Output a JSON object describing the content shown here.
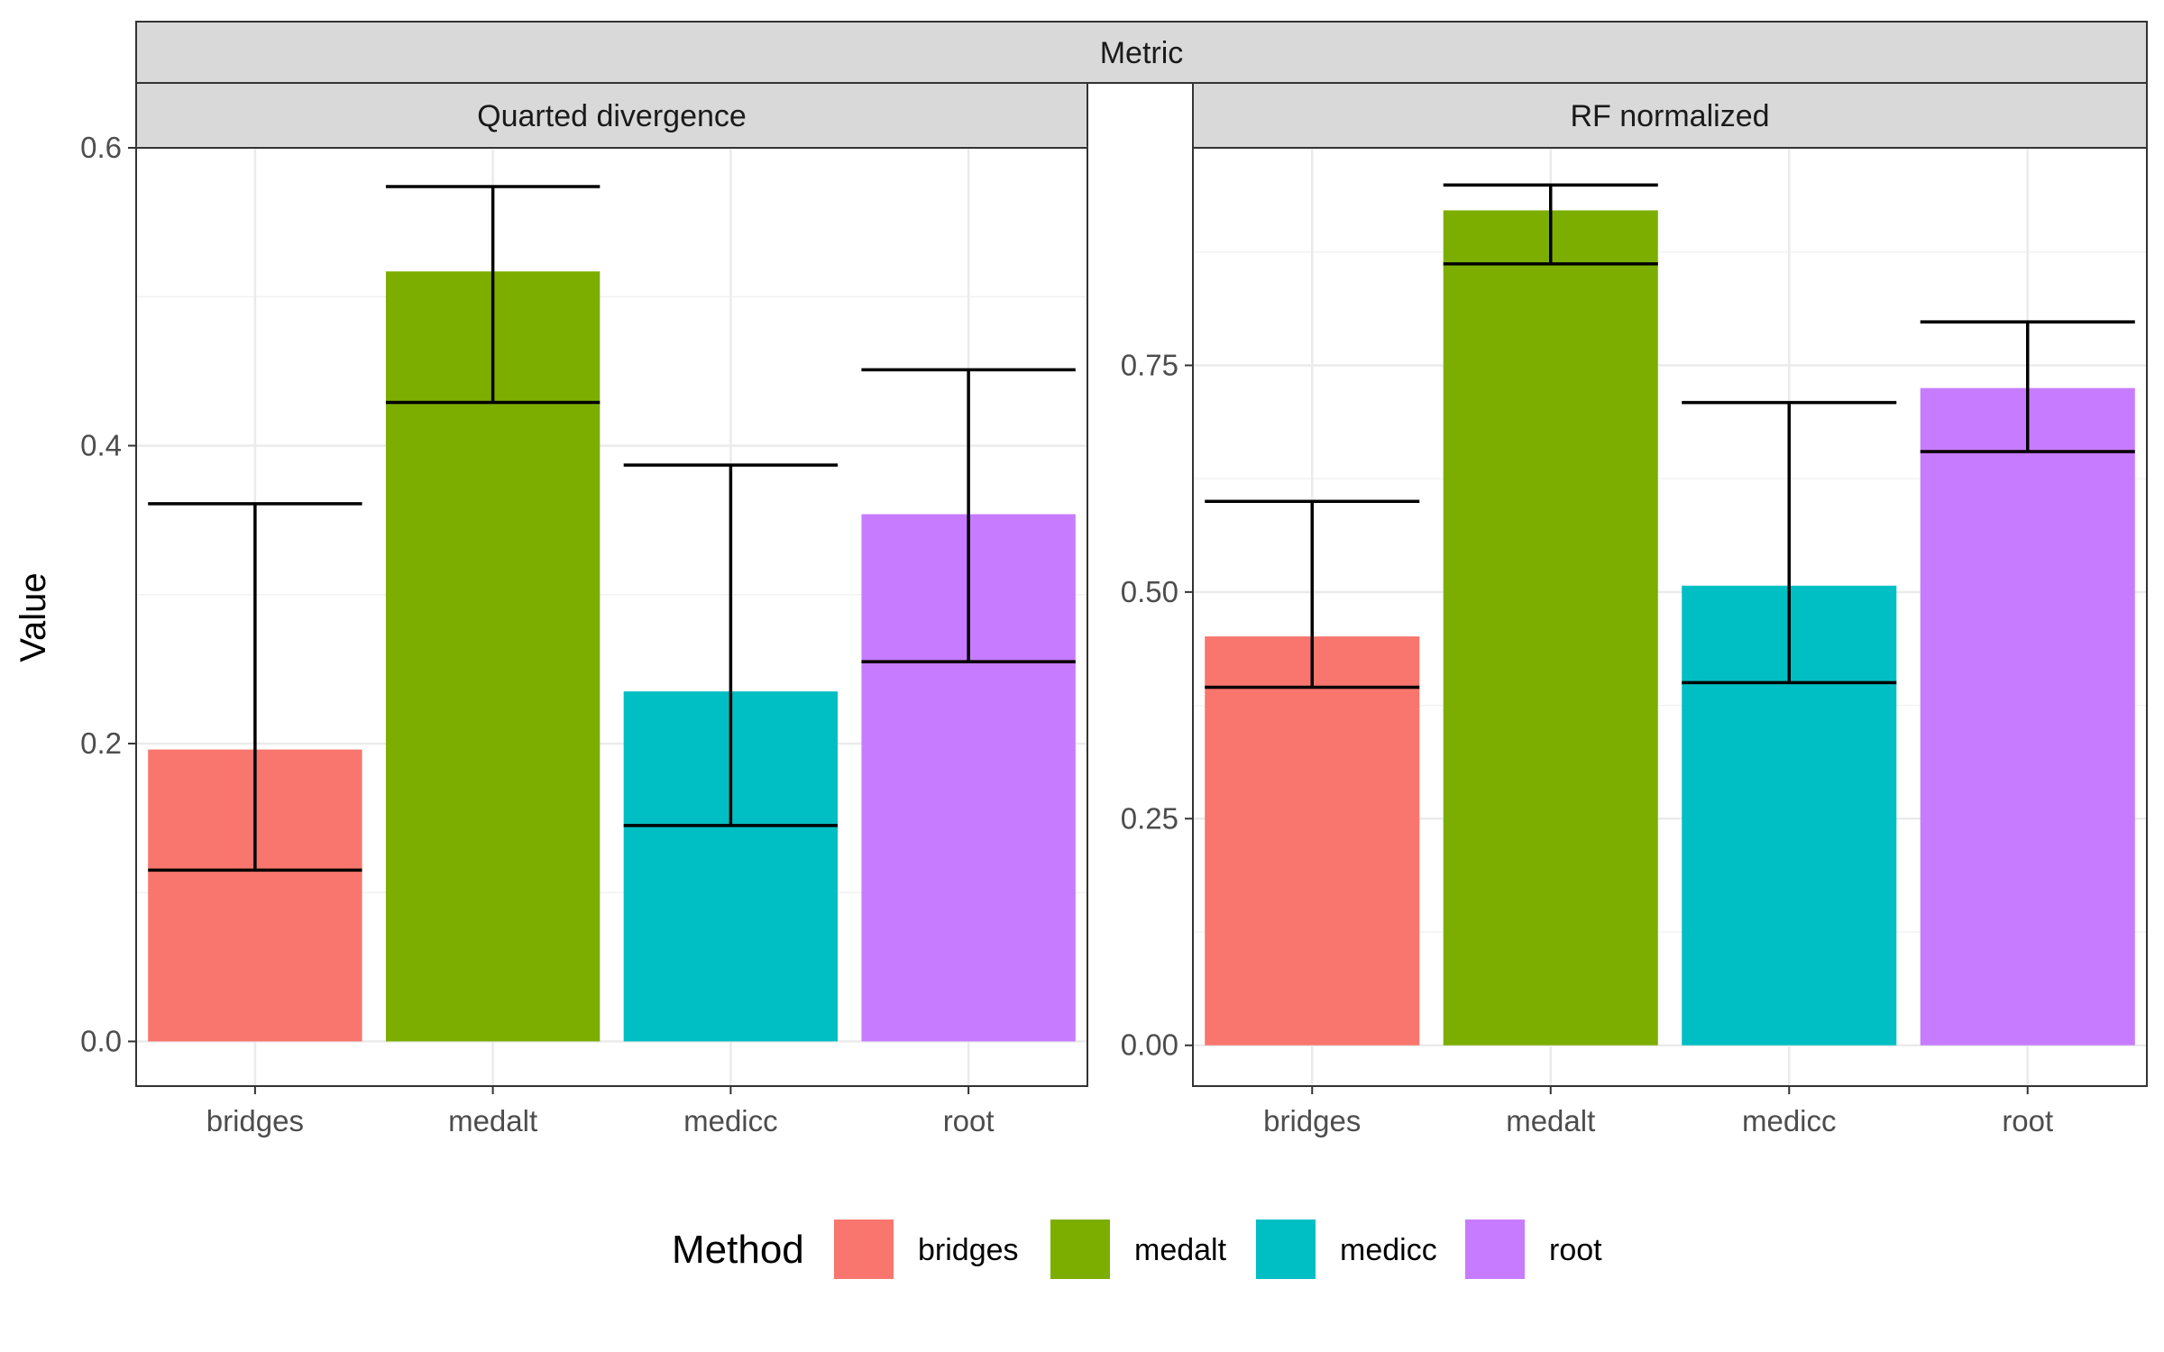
{
  "chart_data": {
    "type": "bar",
    "outer_strip": "Metric",
    "ylabel": "Value",
    "categories": [
      "bridges",
      "medalt",
      "medicc",
      "root"
    ],
    "colors": {
      "bridges": "#F8766D",
      "medalt": "#7CAE00",
      "medicc": "#00BFC4",
      "root": "#C77CFF"
    },
    "legend": {
      "title": "Method",
      "position": "bottom",
      "items": [
        "bridges",
        "medalt",
        "medicc",
        "root"
      ]
    },
    "facets": [
      {
        "title": "Quarted divergence",
        "ylim": [
          -0.03,
          0.6
        ],
        "yticks": [
          0.0,
          0.2,
          0.4,
          0.6
        ],
        "ytick_labels": [
          "0.0",
          "0.2",
          "0.4",
          "0.6"
        ],
        "values": [
          0.196,
          0.517,
          0.235,
          0.354
        ],
        "err_low": [
          0.115,
          0.429,
          0.145,
          0.255
        ],
        "err_high": [
          0.361,
          0.574,
          0.387,
          0.451
        ]
      },
      {
        "title": "RF normalized",
        "ylim": [
          -0.045,
          0.99
        ],
        "yticks": [
          0.0,
          0.25,
          0.5,
          0.75
        ],
        "ytick_labels": [
          "0.00",
          "0.25",
          "0.50",
          "0.75"
        ],
        "values": [
          0.451,
          0.921,
          0.507,
          0.725
        ],
        "err_low": [
          0.395,
          0.862,
          0.4,
          0.655
        ],
        "err_high": [
          0.6,
          0.949,
          0.709,
          0.798
        ]
      }
    ]
  }
}
